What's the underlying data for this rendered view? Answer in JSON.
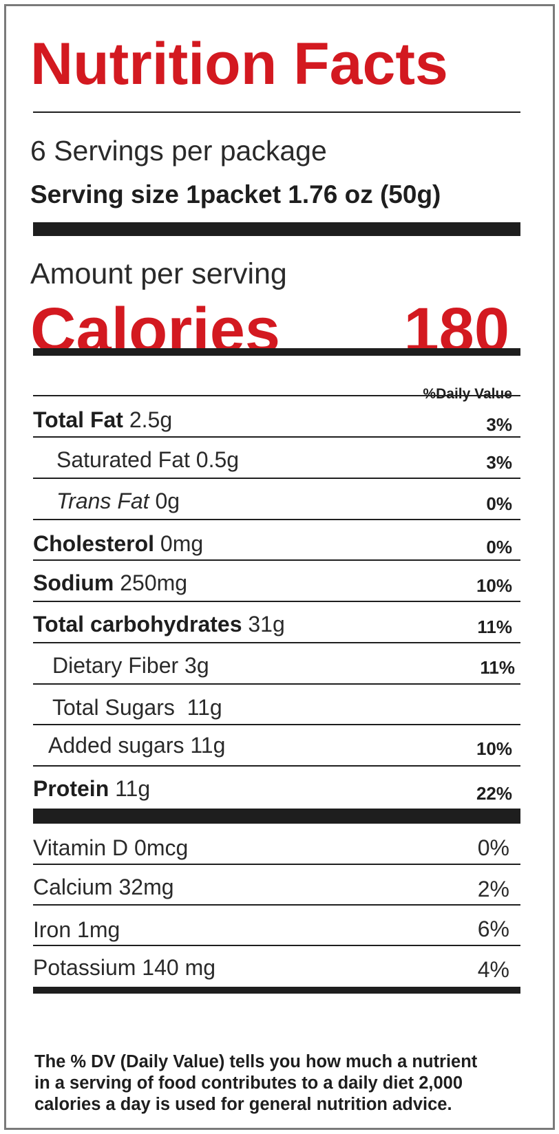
{
  "label": {
    "title": "Nutrition Facts",
    "servings_per_package": "6 Servings per package",
    "serving_size": "Serving size 1packet 1.76 oz (50g)",
    "amount_per_serving": "Amount per serving",
    "calories_label": "Calories",
    "calories_value": "180",
    "daily_value_header": "%Daily Value",
    "nutrients": [
      {
        "name": "Total Fat",
        "amount": "2.5g",
        "dv": "3%"
      },
      {
        "name": "Saturated Fat",
        "amount": "0.5g",
        "dv": "3%"
      },
      {
        "name": "Trans Fat",
        "amount": "0g",
        "dv": "0%"
      },
      {
        "name": "Cholesterol",
        "amount": "0mg",
        "dv": "0%"
      },
      {
        "name": "Sodium",
        "amount": "250mg",
        "dv": "10%"
      },
      {
        "name": "Total carbohydrates",
        "amount": "31g",
        "dv": "11%"
      },
      {
        "name": "Dietary Fiber",
        "amount": "3g",
        "dv": "11%"
      },
      {
        "name": "Total Sugars",
        "amount": "11g",
        "dv": ""
      },
      {
        "name": "Added sugars",
        "amount": "11g",
        "dv": "10%"
      },
      {
        "name": "Protein",
        "amount": "11g",
        "dv": "22%"
      }
    ],
    "vitamins": [
      {
        "label": "Vitamin D 0mcg",
        "dv": "0%"
      },
      {
        "label": "Calcium 32mg",
        "dv": "2%"
      },
      {
        "label": "Iron 1mg",
        "dv": "6%"
      },
      {
        "label": "Potassium 140 mg",
        "dv": "4%"
      }
    ],
    "footnote": "The % DV (Daily Value) tells you how much a nutrient\nin a serving of food contributes  to a  daily diet 2,000\ncalories a day is used for general   nutrition advice.",
    "colors": {
      "accent": "#d31920",
      "text": "#1e1e1e",
      "border": "#7a7a7a"
    }
  }
}
